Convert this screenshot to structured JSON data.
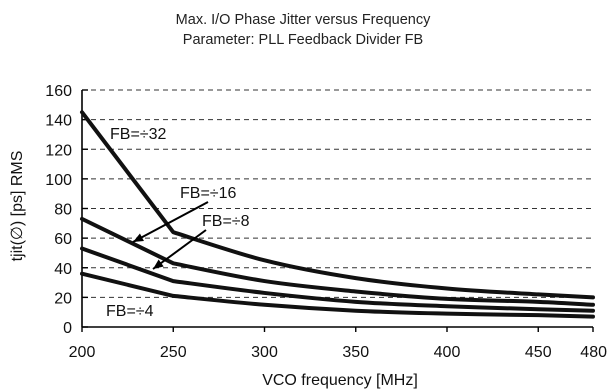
{
  "chart_data": {
    "type": "line",
    "title": "Max. I/O Phase Jitter versus Frequency",
    "subtitle": "Parameter: PLL Feedback Divider FB",
    "xlabel": "VCO frequency [MHz]",
    "ylabel": "tjit(∅) [ps] RMS",
    "xlim": [
      200,
      480
    ],
    "ylim": [
      0,
      160
    ],
    "xticks": [
      200,
      250,
      300,
      350,
      400,
      450,
      480
    ],
    "yticks": [
      0,
      20,
      40,
      60,
      80,
      100,
      120,
      140,
      160
    ],
    "grid": "horizontal dashed",
    "series": [
      {
        "name": "FB=÷32",
        "x": [
          200,
          250,
          300,
          350,
          400,
          450,
          480
        ],
        "values": [
          145,
          64,
          45,
          33,
          26,
          22,
          20
        ]
      },
      {
        "name": "FB=÷16",
        "x": [
          200,
          250,
          300,
          350,
          400,
          450,
          480
        ],
        "values": [
          73,
          43,
          31,
          24,
          19,
          17,
          15
        ]
      },
      {
        "name": "FB=÷8",
        "x": [
          200,
          250,
          300,
          350,
          400,
          450,
          480
        ],
        "values": [
          53,
          31,
          23,
          17,
          14,
          12,
          11
        ]
      },
      {
        "name": "FB=÷4",
        "x": [
          200,
          250,
          300,
          350,
          400,
          450,
          480
        ],
        "values": [
          36,
          21,
          15,
          11,
          9,
          8,
          7
        ]
      }
    ]
  }
}
